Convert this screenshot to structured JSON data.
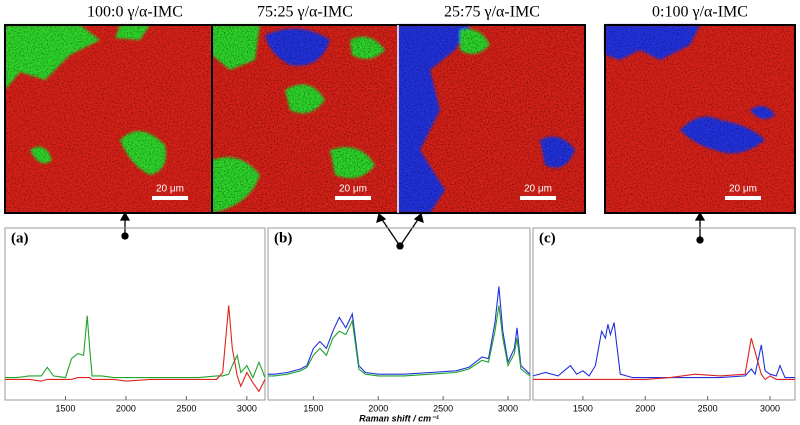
{
  "chart_data": [
    {
      "type": "line",
      "titles": [
        "100:0 γ/α-IMC"
      ],
      "panel_label": "(a)",
      "scale_bar_labels": [
        "20 μm"
      ],
      "xlim": [
        1000,
        3150
      ],
      "ylim": [
        0,
        1
      ],
      "xticks": [
        1500,
        2000,
        2500,
        3000
      ],
      "x": [
        1000,
        1100,
        1200,
        1300,
        1350,
        1400,
        1500,
        1550,
        1600,
        1650,
        1680,
        1700,
        1720,
        1800,
        1900,
        2000,
        2200,
        2400,
        2600,
        2750,
        2800,
        2850,
        2880,
        2920,
        2950,
        3000,
        3050,
        3100,
        3150
      ],
      "series": [
        {
          "color": "#1fa32a",
          "values": [
            0.13,
            0.13,
            0.14,
            0.14,
            0.19,
            0.14,
            0.13,
            0.24,
            0.27,
            0.26,
            0.49,
            0.3,
            0.14,
            0.14,
            0.13,
            0.13,
            0.13,
            0.13,
            0.13,
            0.14,
            0.14,
            0.15,
            0.2,
            0.26,
            0.16,
            0.2,
            0.13,
            0.22,
            0.13
          ]
        },
        {
          "color": "#e0231c",
          "values": [
            0.12,
            0.12,
            0.12,
            0.11,
            0.12,
            0.12,
            0.12,
            0.12,
            0.13,
            0.13,
            0.13,
            0.13,
            0.12,
            0.12,
            0.12,
            0.11,
            0.12,
            0.12,
            0.12,
            0.12,
            0.16,
            0.55,
            0.3,
            0.14,
            0.08,
            0.16,
            0.1,
            0.05,
            0.12
          ]
        }
      ]
    },
    {
      "type": "line",
      "titles": [
        "75:25 γ/α-IMC",
        "25:75 γ/α-IMC"
      ],
      "panel_label": "(b)",
      "scale_bar_labels": [
        "20 μm",
        "20 μm"
      ],
      "xlabel": "Raman shift / cm⁻¹",
      "xlim": [
        1150,
        3170
      ],
      "ylim": [
        0,
        1
      ],
      "xticks": [
        1500,
        2000,
        2500,
        3000
      ],
      "x": [
        1150,
        1200,
        1300,
        1400,
        1450,
        1500,
        1550,
        1600,
        1650,
        1700,
        1750,
        1800,
        1850,
        1900,
        2000,
        2200,
        2400,
        2600,
        2700,
        2800,
        2850,
        2900,
        2930,
        2960,
        3000,
        3050,
        3070,
        3100,
        3170
      ],
      "series": [
        {
          "color": "#1f2fe0",
          "values": [
            0.15,
            0.15,
            0.16,
            0.18,
            0.2,
            0.3,
            0.34,
            0.3,
            0.4,
            0.48,
            0.42,
            0.5,
            0.2,
            0.16,
            0.15,
            0.15,
            0.16,
            0.17,
            0.19,
            0.25,
            0.24,
            0.45,
            0.66,
            0.4,
            0.22,
            0.3,
            0.42,
            0.2,
            0.15
          ]
        },
        {
          "color": "#1fa32a",
          "values": [
            0.14,
            0.14,
            0.15,
            0.17,
            0.19,
            0.26,
            0.3,
            0.26,
            0.36,
            0.4,
            0.38,
            0.46,
            0.18,
            0.15,
            0.14,
            0.14,
            0.15,
            0.16,
            0.18,
            0.23,
            0.22,
            0.4,
            0.55,
            0.36,
            0.2,
            0.27,
            0.36,
            0.18,
            0.14
          ]
        }
      ]
    },
    {
      "type": "line",
      "titles": [
        "0:100 γ/α-IMC"
      ],
      "panel_label": "(c)",
      "scale_bar_labels": [
        "20 μm"
      ],
      "xlim": [
        1100,
        3200
      ],
      "ylim": [
        0,
        1
      ],
      "xticks": [
        1500,
        2000,
        2500,
        3000
      ],
      "x": [
        1100,
        1200,
        1300,
        1400,
        1450,
        1500,
        1550,
        1600,
        1650,
        1680,
        1700,
        1720,
        1750,
        1800,
        1900,
        2000,
        2200,
        2400,
        2600,
        2800,
        2850,
        2880,
        2930,
        2960,
        3000,
        3050,
        3080,
        3120,
        3200
      ],
      "series": [
        {
          "color": "#1f2fe0",
          "values": [
            0.14,
            0.16,
            0.14,
            0.2,
            0.15,
            0.17,
            0.14,
            0.2,
            0.4,
            0.36,
            0.44,
            0.38,
            0.45,
            0.15,
            0.13,
            0.13,
            0.13,
            0.13,
            0.13,
            0.14,
            0.18,
            0.15,
            0.32,
            0.17,
            0.15,
            0.14,
            0.2,
            0.13,
            0.13
          ]
        },
        {
          "color": "#e0231c",
          "values": [
            0.12,
            0.12,
            0.12,
            0.12,
            0.12,
            0.12,
            0.12,
            0.12,
            0.12,
            0.12,
            0.12,
            0.12,
            0.12,
            0.12,
            0.12,
            0.12,
            0.13,
            0.15,
            0.14,
            0.15,
            0.36,
            0.28,
            0.15,
            0.12,
            0.14,
            0.12,
            0.12,
            0.12,
            0.12
          ]
        }
      ]
    }
  ]
}
